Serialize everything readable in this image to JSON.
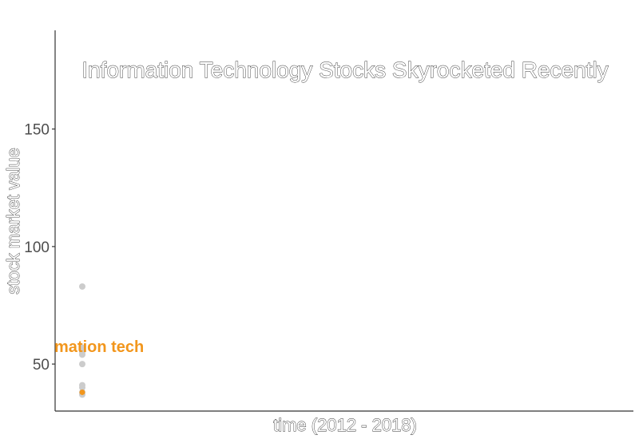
{
  "chart_data": {
    "type": "scatter",
    "title": "Information Technology Stocks Skyrocketed Recently",
    "xlabel": "time (2012 - 2018)",
    "ylabel": "stock market value",
    "ylim": [
      30,
      192
    ],
    "yticks": [
      50,
      100,
      150
    ],
    "grid": false,
    "legend": "none",
    "highlight_label": "mation tech",
    "colors": {
      "background_points": "#cccccc",
      "highlight": "#f2961c",
      "axis": "#333333"
    },
    "series": [
      {
        "name": "",
        "color": "#cccccc",
        "values": [
          83,
          57,
          56,
          55,
          54,
          50,
          41,
          40,
          38,
          37
        ]
      },
      {
        "name": "",
        "color": "#f2961c",
        "values": [
          38
        ]
      }
    ]
  }
}
